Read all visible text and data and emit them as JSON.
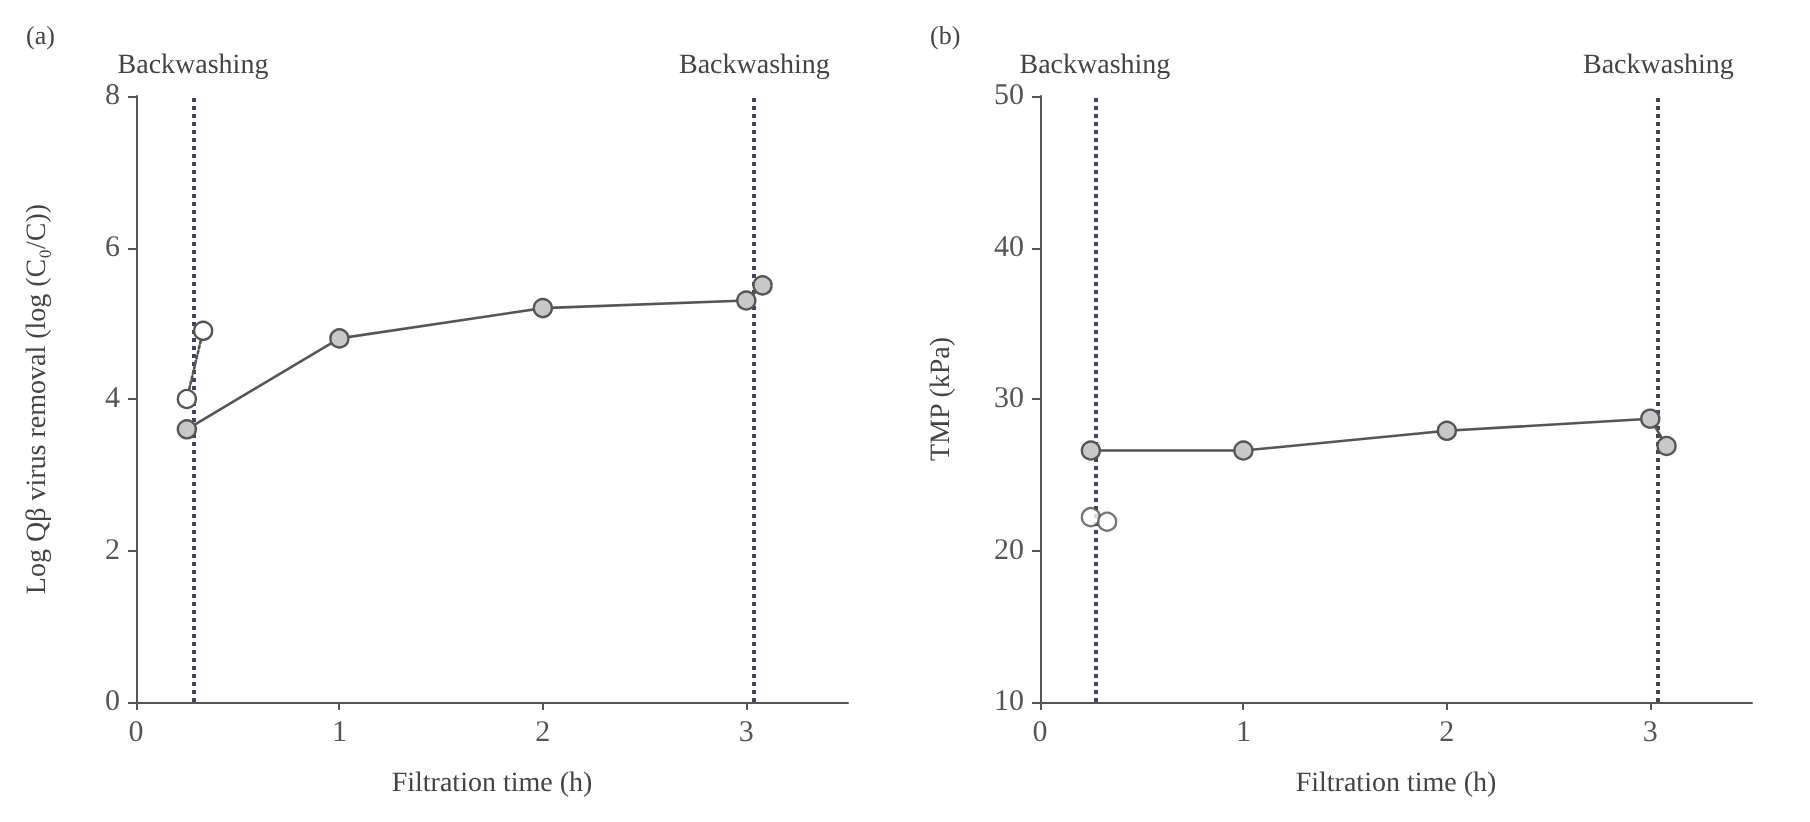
{
  "chart_data": [
    {
      "type": "line",
      "title": "(a)",
      "xlabel": "Filtration time (h)",
      "ylabel": "Log Qβ virus removal (log (C₀/C))",
      "xlim": [
        0,
        3.5
      ],
      "xticks": [
        0,
        1,
        2,
        3
      ],
      "ylim": [
        0,
        8
      ],
      "yticks": [
        0,
        2,
        4,
        6,
        8
      ],
      "grid": false,
      "marker": "circle",
      "series": [
        {
          "color": "#c8c8c8",
          "x": [
            0.25,
            1,
            2,
            3.0,
            3.08
          ],
          "values": [
            3.6,
            4.8,
            5.2,
            5.3,
            5.5
          ],
          "line_style": "solid"
        },
        {
          "color": "#ffffff",
          "x": [
            0.25,
            0.33
          ],
          "values": [
            4.0,
            4.9
          ],
          "line_style": "dotted"
        }
      ],
      "ref_lines": [
        {
          "axis": "x",
          "value": 0.28,
          "label": "Backwashing",
          "line_style": "dotted"
        },
        {
          "axis": "x",
          "value": 3.04,
          "label": "Backwashing",
          "line_style": "dotted"
        }
      ]
    },
    {
      "type": "line",
      "title": "(b)",
      "xlabel": "Filtration time (h)",
      "ylabel": "TMP (kPa)",
      "xlim": [
        0,
        3.5
      ],
      "xticks": [
        0,
        1,
        2,
        3
      ],
      "ylim": [
        10,
        50
      ],
      "yticks": [
        10,
        20,
        30,
        40,
        50
      ],
      "grid": false,
      "marker": "circle",
      "series": [
        {
          "color": "#c8c8c8",
          "x": [
            0.25,
            1,
            2,
            3.0,
            3.08
          ],
          "values": [
            26.6,
            26.6,
            27.9,
            28.7,
            26.9
          ],
          "line_style": "solid"
        },
        {
          "type": "scatter",
          "color": "#ffffff",
          "x": [
            0.25,
            0.33
          ],
          "values": [
            22.2,
            21.9
          ]
        }
      ],
      "ref_lines": [
        {
          "axis": "x",
          "value": 0.27,
          "label": "Backwashing",
          "line_style": "dotted"
        },
        {
          "axis": "x",
          "value": 3.04,
          "label": "Backwashing",
          "line_style": "dotted"
        }
      ]
    }
  ]
}
